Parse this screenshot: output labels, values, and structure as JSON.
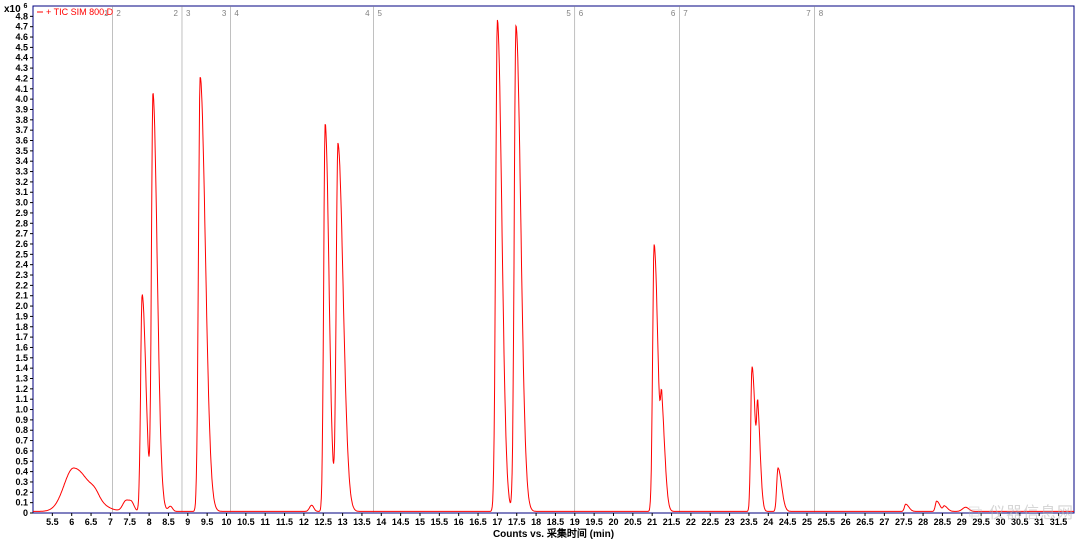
{
  "chromatogram": {
    "type": "line",
    "legend_label": "+ TIC SIM 800.D",
    "y_multiplier_label": "x10",
    "y_multiplier_exponent": "6",
    "x_axis_title": "Counts vs. 采集时间 (min)",
    "line_color": "#ff0000",
    "line_width": 1.0,
    "border_color": "#000080",
    "border_width": 1.0,
    "background_color": "#ffffff",
    "tick_color": "#000000",
    "tick_label_fontsize": 9,
    "axis_title_fontsize": 10,
    "segment_line_color": "#808080",
    "segment_line_width": 0.5,
    "xlim": [
      5.0,
      31.9
    ],
    "xtick_start": 5.5,
    "xtick_step": 0.5,
    "xtick_end": 31.5,
    "ylim": [
      0,
      4.9
    ],
    "ytick_start": 0,
    "ytick_step": 0.1,
    "ytick_end": 4.8,
    "segments": [
      {
        "x": 7.05,
        "left_label": "1",
        "right_label": "2"
      },
      {
        "x": 8.85,
        "left_label": "2",
        "right_label": "3"
      },
      {
        "x": 10.1,
        "left_label": "3",
        "right_label": "4"
      },
      {
        "x": 13.8,
        "left_label": "4",
        "right_label": "5"
      },
      {
        "x": 19.0,
        "left_label": "5",
        "right_label": "6"
      },
      {
        "x": 21.7,
        "left_label": "6",
        "right_label": "7"
      },
      {
        "x": 25.2,
        "left_label": "7",
        "right_label": "8"
      }
    ],
    "peaks": [
      {
        "rt": 6.05,
        "height": 0.42,
        "width": 0.45,
        "tail": 0.35
      },
      {
        "rt": 7.82,
        "height": 2.1,
        "width": 0.07,
        "tail": 0.12
      },
      {
        "rt": 8.1,
        "height": 4.02,
        "width": 0.07,
        "tail": 0.14
      },
      {
        "rt": 9.32,
        "height": 4.2,
        "width": 0.08,
        "tail": 0.18
      },
      {
        "rt": 12.55,
        "height": 3.75,
        "width": 0.07,
        "tail": 0.12
      },
      {
        "rt": 12.88,
        "height": 3.55,
        "width": 0.08,
        "tail": 0.18
      },
      {
        "rt": 17.0,
        "height": 4.75,
        "width": 0.08,
        "tail": 0.14
      },
      {
        "rt": 17.48,
        "height": 4.7,
        "width": 0.08,
        "tail": 0.16
      },
      {
        "rt": 21.05,
        "height": 2.58,
        "width": 0.07,
        "tail": 0.12
      },
      {
        "rt": 21.25,
        "height": 0.82,
        "width": 0.06,
        "tail": 0.1
      },
      {
        "rt": 23.58,
        "height": 1.4,
        "width": 0.06,
        "tail": 0.1
      },
      {
        "rt": 23.73,
        "height": 0.8,
        "width": 0.05,
        "tail": 0.08
      },
      {
        "rt": 24.25,
        "height": 0.42,
        "width": 0.06,
        "tail": 0.12
      },
      {
        "rt": 27.55,
        "height": 0.07,
        "width": 0.06,
        "tail": 0.1
      },
      {
        "rt": 28.35,
        "height": 0.1,
        "width": 0.06,
        "tail": 0.1
      },
      {
        "rt": 28.55,
        "height": 0.05,
        "width": 0.06,
        "tail": 0.1
      }
    ],
    "noise_bumps": [
      {
        "rt": 6.6,
        "height": 0.05,
        "width": 0.2
      },
      {
        "rt": 7.4,
        "height": 0.1,
        "width": 0.15
      },
      {
        "rt": 7.55,
        "height": 0.08,
        "width": 0.12
      },
      {
        "rt": 8.55,
        "height": 0.05,
        "width": 0.1
      },
      {
        "rt": 12.2,
        "height": 0.06,
        "width": 0.1
      },
      {
        "rt": 29.1,
        "height": 0.04,
        "width": 0.15
      }
    ],
    "baseline": 0.015
  },
  "watermark": {
    "text": "仪器信息网",
    "icon": "⧉"
  }
}
